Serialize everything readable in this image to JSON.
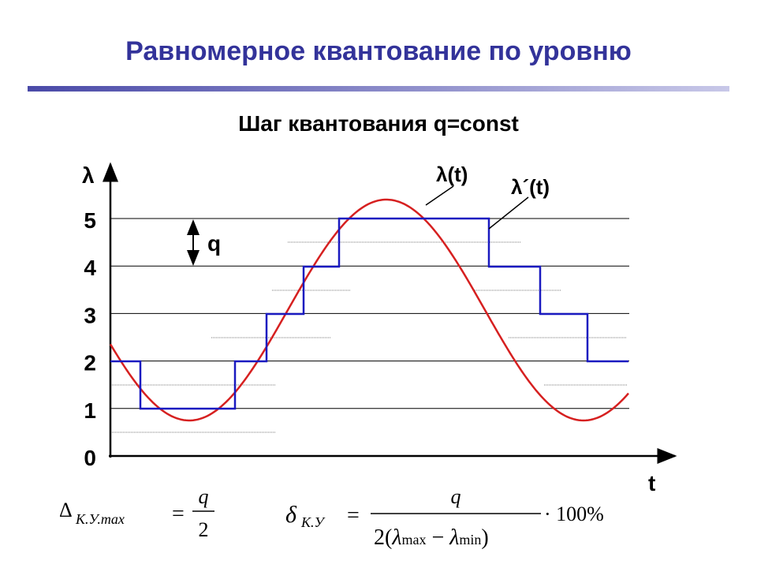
{
  "header": {
    "title": "Равномерное квантование по уровню",
    "subtitle": "Шаг квантования q=const"
  },
  "diagram": {
    "y_axis_label": "λ",
    "x_axis_label": "t",
    "levels": [
      "0",
      "1",
      "2",
      "3",
      "4",
      "5"
    ],
    "curve_label": "λ(t)",
    "step_label": "λ´(t)",
    "step_size_label": "q"
  },
  "formulas": {
    "left": {
      "symbol": "Δ",
      "subscript": "К.У.max",
      "equals": "=",
      "numerator": "q",
      "denominator": "2"
    },
    "right": {
      "symbol": "δ",
      "subscript": "К.У",
      "equals": "=",
      "numerator": "q",
      "denominator_prefix": "2(",
      "lambda1": "λ",
      "sub1": "max",
      "minus": " − ",
      "lambda2": "λ",
      "sub2": "min",
      "denominator_suffix": ")",
      "factor": "· 100%"
    }
  }
}
